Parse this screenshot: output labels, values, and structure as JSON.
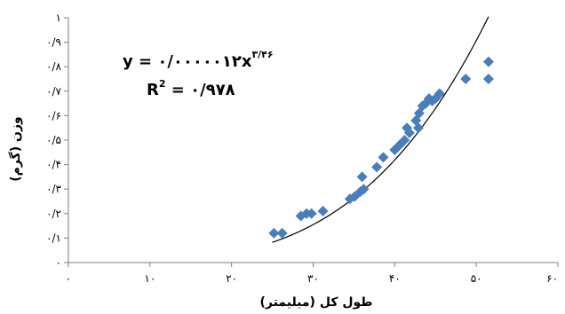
{
  "chart_data": {
    "type": "scatter",
    "title": "",
    "xlabel": "طول کل (میلیمتر)",
    "ylabel": "وزن (گرم)",
    "xlim": [
      0,
      60
    ],
    "ylim": [
      0,
      1
    ],
    "x_ticks": [
      0,
      10,
      20,
      30,
      40,
      50,
      60
    ],
    "x_tick_labels": [
      "۰",
      "۱۰",
      "۲۰",
      "۳۰",
      "۴۰",
      "۵۰",
      "۶۰"
    ],
    "y_ticks": [
      0,
      0.1,
      0.2,
      0.3,
      0.4,
      0.5,
      0.6,
      0.7,
      0.8,
      0.9,
      1
    ],
    "y_tick_labels": [
      "۰",
      "۰/۱",
      "۰/۲",
      "۰/۳",
      "۰/۴",
      "۰/۵",
      "۰/۶",
      "۰/۷",
      "۰/۸",
      "۰/۹",
      "۱"
    ],
    "grid": false,
    "marker_color": "#4a7ebb",
    "trendline_color": "#000000",
    "series": [
      {
        "points": [
          [
            25.2,
            0.12
          ],
          [
            26.2,
            0.12
          ],
          [
            28.5,
            0.19
          ],
          [
            29.2,
            0.2
          ],
          [
            29.8,
            0.2
          ],
          [
            31.2,
            0.21
          ],
          [
            34.5,
            0.26
          ],
          [
            35.1,
            0.27
          ],
          [
            35.8,
            0.29
          ],
          [
            36.2,
            0.3
          ],
          [
            36.0,
            0.35
          ],
          [
            37.8,
            0.39
          ],
          [
            38.6,
            0.43
          ],
          [
            40.0,
            0.46
          ],
          [
            40.6,
            0.48
          ],
          [
            41.2,
            0.5
          ],
          [
            41.8,
            0.53
          ],
          [
            41.5,
            0.55
          ],
          [
            42.6,
            0.58
          ],
          [
            42.9,
            0.55
          ],
          [
            43.0,
            0.61
          ],
          [
            43.4,
            0.64
          ],
          [
            43.8,
            0.65
          ],
          [
            44.2,
            0.67
          ],
          [
            44.6,
            0.66
          ],
          [
            45.0,
            0.67
          ],
          [
            45.5,
            0.69
          ],
          [
            48.7,
            0.75
          ],
          [
            51.5,
            0.75
          ],
          [
            51.5,
            0.82
          ]
        ]
      }
    ],
    "trendline": {
      "type": "power",
      "coefficient": 1.2e-06,
      "exponent": 3.46,
      "x_range": [
        25,
        51.5
      ]
    },
    "annotations": {
      "equation_main": "y = ۰/۰۰۰۰۰۱۲x",
      "equation_exponent": "۳/۴۶",
      "r2_prefix": "R",
      "r2_superscript": "2",
      "r2_value": " = ۰/۹۷۸"
    }
  }
}
